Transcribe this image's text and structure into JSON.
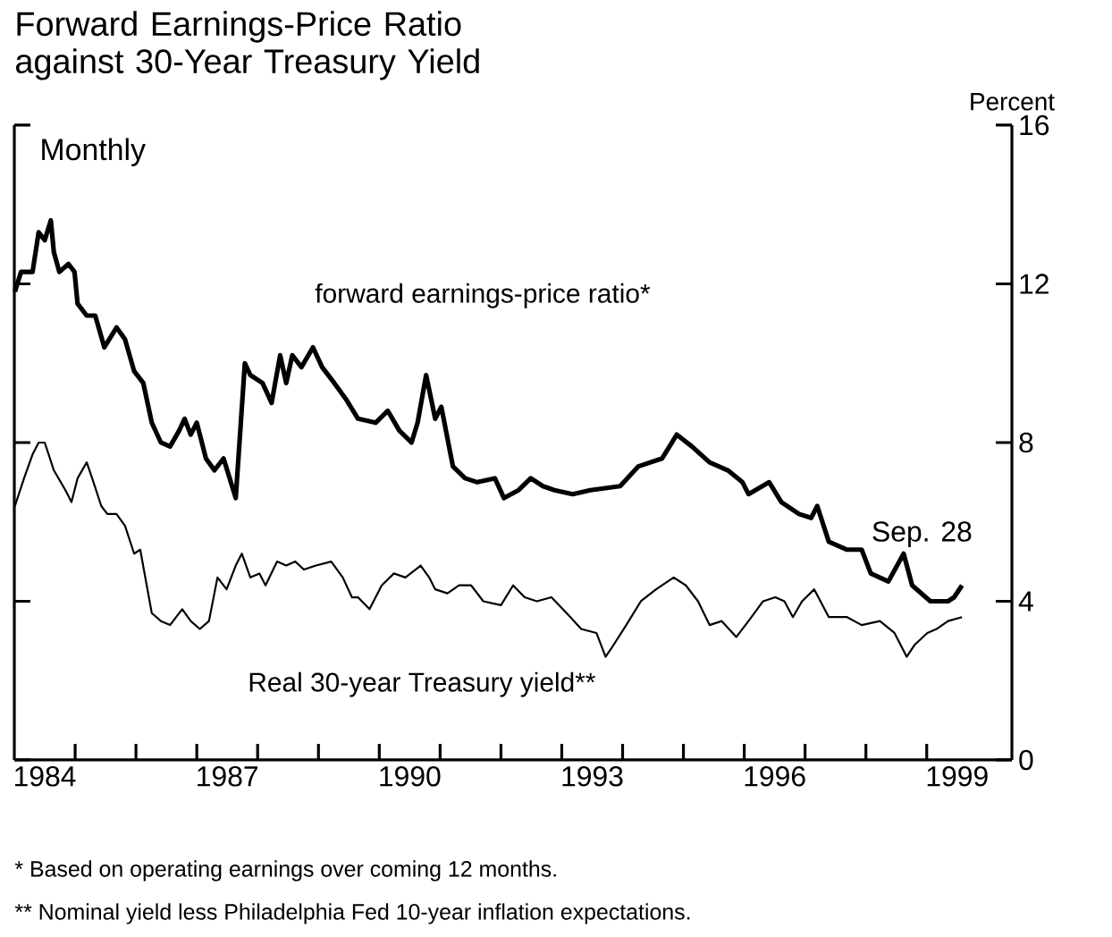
{
  "chart_data": {
    "type": "line",
    "title": "Forward Earnings-Price Ratio against 30-Year Treasury Yield",
    "ylabel": "Percent",
    "annotations": [
      "Monthly",
      {
        "text": "Sep. 28",
        "x": 1999.58,
        "y": 4.36
      },
      "* Based on operating earnings over coming 12 months.",
      "** Nominal yield less Philadelphia Fed 10-year inflation expectations."
    ],
    "xlim": [
      1984,
      2000.4
    ],
    "ylim": [
      0,
      16
    ],
    "xticks": [
      {
        "value": 1985,
        "label": null
      },
      {
        "value": 1986,
        "label": null
      },
      {
        "value": 1987,
        "label": null
      },
      {
        "value": 1988,
        "label": null
      },
      {
        "value": 1989,
        "label": null
      },
      {
        "value": 1990,
        "label": null
      },
      {
        "value": 1991,
        "label": null
      },
      {
        "value": 1992,
        "label": null
      },
      {
        "value": 1993,
        "label": null
      },
      {
        "value": 1994,
        "label": null
      },
      {
        "value": 1995,
        "label": null
      },
      {
        "value": 1996,
        "label": null
      },
      {
        "value": 1997,
        "label": null
      },
      {
        "value": 1998,
        "label": null
      },
      {
        "value": 1999,
        "label": null
      },
      {
        "value": 1984.5,
        "label": "1984"
      },
      {
        "value": 1987.5,
        "label": "1987"
      },
      {
        "value": 1990.5,
        "label": "1990"
      },
      {
        "value": 1993.5,
        "label": "1993"
      },
      {
        "value": 1996.5,
        "label": "1996"
      },
      {
        "value": 1999.5,
        "label": "1999"
      }
    ],
    "yticks": [
      0,
      4,
      8,
      12,
      16
    ],
    "series": [
      {
        "name": "forward earnings-price ratio*",
        "color": "#000000",
        "x": [
          1984.01,
          1984.11,
          1984.3,
          1984.4,
          1984.5,
          1984.6,
          1984.65,
          1984.74,
          1984.89,
          1984.99,
          1985.04,
          1985.19,
          1985.33,
          1985.48,
          1985.68,
          1985.82,
          1985.97,
          1986.12,
          1986.26,
          1986.41,
          1986.56,
          1986.71,
          1986.8,
          1986.9,
          1987.0,
          1987.15,
          1987.29,
          1987.44,
          1987.64,
          1987.79,
          1987.88,
          1988.08,
          1988.23,
          1988.37,
          1988.47,
          1988.57,
          1988.72,
          1988.91,
          1989.06,
          1989.26,
          1989.45,
          1989.65,
          1989.94,
          1990.14,
          1990.33,
          1990.53,
          1990.63,
          1990.77,
          1990.92,
          1991.02,
          1991.21,
          1991.41,
          1991.61,
          1991.9,
          1992.05,
          1992.29,
          1992.49,
          1992.69,
          1992.88,
          1993.18,
          1993.47,
          1993.96,
          1994.26,
          1994.65,
          1994.89,
          1995.14,
          1995.43,
          1995.73,
          1995.97,
          1996.07,
          1996.41,
          1996.61,
          1996.9,
          1997.1,
          1997.2,
          1997.39,
          1997.69,
          1997.93,
          1998.08,
          1998.37,
          1998.62,
          1998.76,
          1999.06,
          1999.35,
          1999.45,
          1999.58
        ],
        "values": [
          11.8,
          12.3,
          12.3,
          13.3,
          13.1,
          13.6,
          12.8,
          12.3,
          12.5,
          12.3,
          11.5,
          11.2,
          11.2,
          10.4,
          10.9,
          10.6,
          9.8,
          9.5,
          8.5,
          8.0,
          7.9,
          8.3,
          8.6,
          8.2,
          8.5,
          7.6,
          7.3,
          7.6,
          6.6,
          10.0,
          9.7,
          9.5,
          9.0,
          10.2,
          9.5,
          10.2,
          9.9,
          10.4,
          9.9,
          9.5,
          9.1,
          8.6,
          8.5,
          8.8,
          8.3,
          8.0,
          8.5,
          9.7,
          8.6,
          8.9,
          7.4,
          7.1,
          7.0,
          7.1,
          6.6,
          6.8,
          7.1,
          6.9,
          6.8,
          6.7,
          6.8,
          6.9,
          7.4,
          7.6,
          8.2,
          7.9,
          7.5,
          7.3,
          7.0,
          6.7,
          7.0,
          6.5,
          6.2,
          6.1,
          6.4,
          5.5,
          5.3,
          5.3,
          4.7,
          4.5,
          5.2,
          4.4,
          4.0,
          4.0,
          4.1,
          4.4
        ]
      },
      {
        "name": "Real 30-year Treasury yield**",
        "color": "#000000",
        "x": [
          1984.01,
          1984.16,
          1984.3,
          1984.4,
          1984.5,
          1984.65,
          1984.84,
          1984.94,
          1985.04,
          1985.19,
          1985.28,
          1985.43,
          1985.53,
          1985.68,
          1985.82,
          1985.97,
          1986.07,
          1986.26,
          1986.41,
          1986.56,
          1986.76,
          1986.9,
          1987.05,
          1987.2,
          1987.34,
          1987.49,
          1987.64,
          1987.74,
          1987.88,
          1988.03,
          1988.13,
          1988.32,
          1988.47,
          1988.62,
          1988.76,
          1988.96,
          1989.21,
          1989.4,
          1989.55,
          1989.65,
          1989.84,
          1990.04,
          1990.24,
          1990.43,
          1990.68,
          1990.82,
          1990.92,
          1991.12,
          1991.31,
          1991.51,
          1991.71,
          1992.0,
          1992.2,
          1992.39,
          1992.59,
          1992.83,
          1993.08,
          1993.32,
          1993.57,
          1993.72,
          1993.81,
          1994.06,
          1994.3,
          1994.55,
          1994.84,
          1995.04,
          1995.24,
          1995.43,
          1995.63,
          1995.87,
          1996.07,
          1996.31,
          1996.51,
          1996.66,
          1996.8,
          1996.95,
          1997.15,
          1997.39,
          1997.69,
          1997.93,
          1998.23,
          1998.47,
          1998.67,
          1998.8,
          1999.01,
          1999.16,
          1999.35,
          1999.58
        ],
        "values": [
          6.4,
          7.1,
          7.7,
          8.0,
          8.0,
          7.3,
          6.8,
          6.5,
          7.1,
          7.5,
          7.1,
          6.4,
          6.2,
          6.2,
          5.9,
          5.2,
          5.3,
          3.7,
          3.5,
          3.4,
          3.8,
          3.5,
          3.3,
          3.5,
          4.6,
          4.3,
          4.9,
          5.2,
          4.6,
          4.7,
          4.4,
          5.0,
          4.9,
          5.0,
          4.8,
          4.9,
          5.0,
          4.6,
          4.1,
          4.1,
          3.8,
          4.4,
          4.7,
          4.6,
          4.9,
          4.6,
          4.3,
          4.2,
          4.4,
          4.4,
          4.0,
          3.9,
          4.4,
          4.1,
          4.0,
          4.1,
          3.7,
          3.3,
          3.2,
          2.6,
          2.8,
          3.4,
          4.0,
          4.3,
          4.6,
          4.4,
          4.0,
          3.4,
          3.5,
          3.1,
          3.5,
          4.0,
          4.1,
          4.0,
          3.6,
          4.0,
          4.3,
          3.6,
          3.6,
          3.4,
          3.5,
          3.2,
          2.6,
          2.9,
          3.2,
          3.3,
          3.5,
          3.6
        ]
      }
    ]
  }
}
